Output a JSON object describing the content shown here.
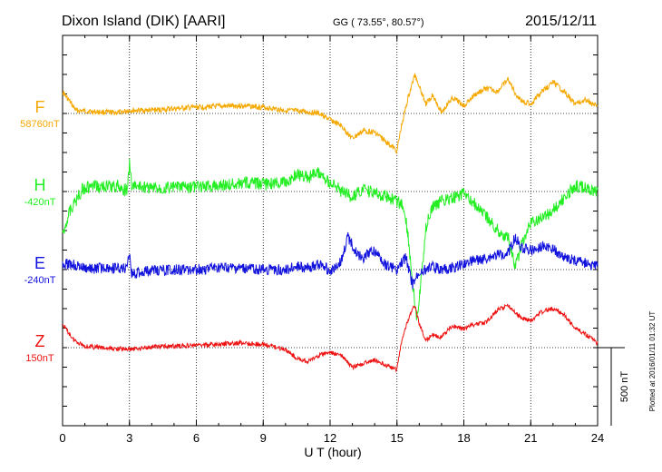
{
  "header": {
    "station": "Dixon Island (DIK)  [AARI]",
    "coords": "GG ( 73.55°,  80.57°)",
    "date": "2015/12/11"
  },
  "footer": {
    "plotted": "Plotted at 2016/01/11 01:32 UT",
    "scale_label": "500 nT"
  },
  "colors": {
    "F": "#f5a800",
    "H": "#22ee22",
    "E": "#1111dd",
    "Z": "#ee1111"
  },
  "chart_data": {
    "type": "line",
    "xlabel": "U T (hour)",
    "xlim": [
      0,
      24
    ],
    "x_ticks": [
      "0",
      "3",
      "6",
      "9",
      "12",
      "15",
      "18",
      "21",
      "24"
    ],
    "y_unit": "nT",
    "scale_bar_nT": 500,
    "series": [
      {
        "name": "F",
        "baseline_label": "58760nT",
        "baseline_nT": 58760,
        "points": [
          [
            0,
            58900
          ],
          [
            0.3,
            58840
          ],
          [
            0.6,
            58780
          ],
          [
            1.5,
            58770
          ],
          [
            2.5,
            58765
          ],
          [
            3,
            58780
          ],
          [
            4,
            58780
          ],
          [
            5,
            58790
          ],
          [
            6,
            58800
          ],
          [
            7,
            58805
          ],
          [
            8,
            58810
          ],
          [
            9,
            58800
          ],
          [
            10,
            58780
          ],
          [
            11,
            58770
          ],
          [
            11.5,
            58760
          ],
          [
            12,
            58720
          ],
          [
            12.5,
            58680
          ],
          [
            13,
            58600
          ],
          [
            13.5,
            58650
          ],
          [
            14,
            58640
          ],
          [
            14.5,
            58580
          ],
          [
            15,
            58520
          ],
          [
            15.2,
            58680
          ],
          [
            15.5,
            58860
          ],
          [
            15.8,
            59010
          ],
          [
            16,
            58940
          ],
          [
            16.3,
            58820
          ],
          [
            16.6,
            58880
          ],
          [
            17,
            58770
          ],
          [
            17.5,
            58860
          ],
          [
            18,
            58810
          ],
          [
            18.5,
            58880
          ],
          [
            19,
            58920
          ],
          [
            19.5,
            58900
          ],
          [
            20,
            58980
          ],
          [
            20.3,
            58890
          ],
          [
            20.6,
            58840
          ],
          [
            21,
            58820
          ],
          [
            21.5,
            58900
          ],
          [
            22,
            58960
          ],
          [
            22.5,
            58900
          ],
          [
            23,
            58820
          ],
          [
            23.5,
            58850
          ],
          [
            24,
            58800
          ]
        ]
      },
      {
        "name": "H",
        "baseline_label": "-420nT",
        "baseline_nT": -420,
        "points": [
          [
            0,
            -700
          ],
          [
            0.3,
            -550
          ],
          [
            0.6,
            -480
          ],
          [
            0.9,
            -400
          ],
          [
            1.5,
            -390
          ],
          [
            2.5,
            -385
          ],
          [
            2.9,
            -420
          ],
          [
            3,
            -240
          ],
          [
            3.1,
            -380
          ],
          [
            4,
            -400
          ],
          [
            5,
            -395
          ],
          [
            6,
            -390
          ],
          [
            7,
            -380
          ],
          [
            8,
            -370
          ],
          [
            8.5,
            -360
          ],
          [
            9,
            -375
          ],
          [
            10,
            -360
          ],
          [
            10.5,
            -310
          ],
          [
            11,
            -330
          ],
          [
            11.5,
            -300
          ],
          [
            12,
            -360
          ],
          [
            12.5,
            -420
          ],
          [
            13,
            -460
          ],
          [
            13.5,
            -410
          ],
          [
            14,
            -430
          ],
          [
            14.5,
            -450
          ],
          [
            15,
            -480
          ],
          [
            15.3,
            -520
          ],
          [
            15.5,
            -700
          ],
          [
            15.7,
            -1000
          ],
          [
            15.9,
            -1250
          ],
          [
            16,
            -1100
          ],
          [
            16.3,
            -650
          ],
          [
            16.6,
            -510
          ],
          [
            17,
            -480
          ],
          [
            17.5,
            -460
          ],
          [
            18,
            -440
          ],
          [
            18.5,
            -500
          ],
          [
            19,
            -580
          ],
          [
            19.5,
            -660
          ],
          [
            20,
            -720
          ],
          [
            20.3,
            -900
          ],
          [
            20.6,
            -760
          ],
          [
            21,
            -620
          ],
          [
            21.5,
            -580
          ],
          [
            22,
            -540
          ],
          [
            22.5,
            -460
          ],
          [
            23,
            -380
          ],
          [
            23.5,
            -400
          ],
          [
            24,
            -420
          ]
        ]
      },
      {
        "name": "E",
        "baseline_label": "-240nT",
        "baseline_nT": -240,
        "points": [
          [
            0,
            -200
          ],
          [
            0.5,
            -210
          ],
          [
            1,
            -235
          ],
          [
            2,
            -230
          ],
          [
            2.8,
            -235
          ],
          [
            3,
            -140
          ],
          [
            3.1,
            -270
          ],
          [
            4,
            -245
          ],
          [
            5,
            -240
          ],
          [
            6,
            -240
          ],
          [
            7,
            -230
          ],
          [
            8,
            -235
          ],
          [
            9,
            -240
          ],
          [
            10,
            -240
          ],
          [
            10.5,
            -220
          ],
          [
            11,
            -230
          ],
          [
            11.5,
            -200
          ],
          [
            12,
            -250
          ],
          [
            12.5,
            -190
          ],
          [
            12.8,
            -30
          ],
          [
            13.2,
            -140
          ],
          [
            13.5,
            -160
          ],
          [
            14,
            -120
          ],
          [
            14.5,
            -210
          ],
          [
            15,
            -240
          ],
          [
            15.4,
            -160
          ],
          [
            15.7,
            -340
          ],
          [
            16,
            -260
          ],
          [
            16.5,
            -220
          ],
          [
            17,
            -240
          ],
          [
            17.5,
            -230
          ],
          [
            18,
            -200
          ],
          [
            18.5,
            -180
          ],
          [
            19,
            -170
          ],
          [
            19.5,
            -150
          ],
          [
            20,
            -130
          ],
          [
            20.3,
            -30
          ],
          [
            20.6,
            -100
          ],
          [
            21,
            -120
          ],
          [
            21.5,
            -90
          ],
          [
            22,
            -110
          ],
          [
            22.5,
            -160
          ],
          [
            23,
            -180
          ],
          [
            23.5,
            -200
          ],
          [
            24,
            -220
          ]
        ]
      },
      {
        "name": "Z",
        "baseline_label": "150nT",
        "baseline_nT": 150,
        "points": [
          [
            0,
            300
          ],
          [
            0.5,
            200
          ],
          [
            1,
            160
          ],
          [
            2,
            145
          ],
          [
            3,
            140
          ],
          [
            4,
            155
          ],
          [
            5,
            160
          ],
          [
            6,
            165
          ],
          [
            7,
            170
          ],
          [
            8,
            180
          ],
          [
            9,
            170
          ],
          [
            10,
            140
          ],
          [
            10.5,
            80
          ],
          [
            11,
            60
          ],
          [
            11.5,
            100
          ],
          [
            12,
            120
          ],
          [
            12.5,
            100
          ],
          [
            13,
            20
          ],
          [
            13.5,
            50
          ],
          [
            14,
            70
          ],
          [
            14.5,
            40
          ],
          [
            15,
            10
          ],
          [
            15.2,
            190
          ],
          [
            15.5,
            330
          ],
          [
            15.8,
            420
          ],
          [
            16,
            300
          ],
          [
            16.3,
            200
          ],
          [
            16.6,
            230
          ],
          [
            17,
            220
          ],
          [
            17.5,
            290
          ],
          [
            18,
            270
          ],
          [
            18.5,
            300
          ],
          [
            19,
            310
          ],
          [
            19.5,
            390
          ],
          [
            20,
            420
          ],
          [
            20.3,
            370
          ],
          [
            20.6,
            340
          ],
          [
            21,
            320
          ],
          [
            21.5,
            380
          ],
          [
            22,
            400
          ],
          [
            22.5,
            360
          ],
          [
            23,
            280
          ],
          [
            23.5,
            230
          ],
          [
            24,
            180
          ]
        ]
      }
    ]
  }
}
